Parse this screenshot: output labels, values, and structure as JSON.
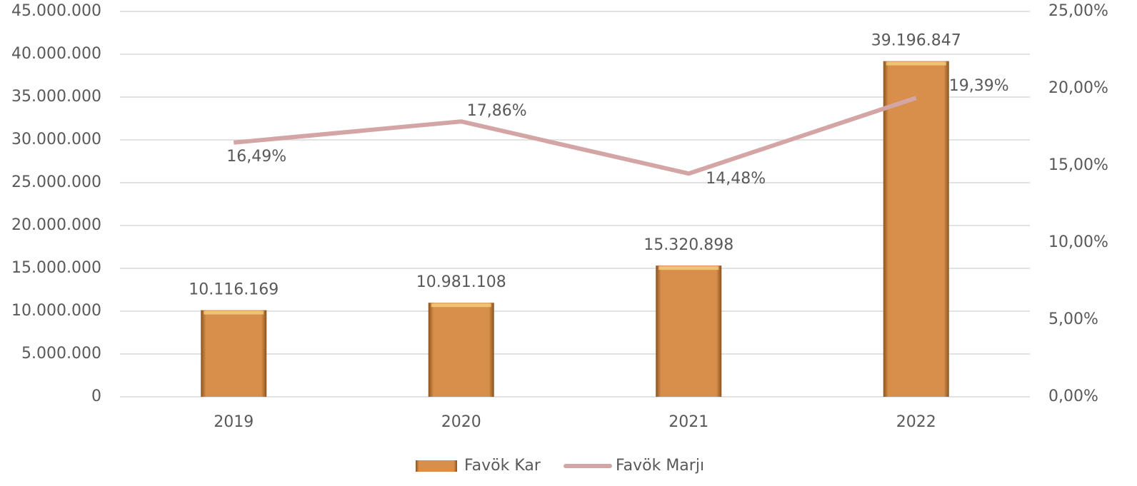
{
  "chart_data": {
    "type": "bar",
    "categories": [
      "2019",
      "2020",
      "2021",
      "2022"
    ],
    "series": [
      {
        "name": "Favök Kar",
        "color": "#d98f4c",
        "values": [
          10116169,
          10981108,
          15320898,
          39196847
        ],
        "value_labels": [
          "10.116.169",
          "10.981.108",
          "15.320.898",
          "39.196.847"
        ]
      },
      {
        "name": "Favök Marjı",
        "type": "line",
        "axis": "y2",
        "color": "#d4a5a5",
        "values": [
          16.49,
          17.86,
          14.48,
          19.39
        ],
        "value_labels": [
          "16,49%",
          "17,86%",
          "14,48%",
          "19,39%"
        ]
      }
    ],
    "ylim": [
      0,
      45000000
    ],
    "yticks": [
      0,
      {
        "value": 5000000,
        "label": "5.000.000"
      },
      {
        "value": 10000000,
        "label": "10.000.000"
      },
      {
        "value": 15000000,
        "label": "15.000.000"
      },
      {
        "value": 20000000,
        "label": "20.000.000"
      },
      {
        "value": 25000000,
        "label": "25.000.000"
      },
      {
        "value": 30000000,
        "label": "30.000.000"
      },
      {
        "value": 35000000,
        "label": "35.000.000"
      },
      {
        "value": 40000000,
        "label": "40.000.000"
      },
      {
        "value": 45000000,
        "label": "45.000.000"
      }
    ],
    "y2lim": [
      0,
      25
    ],
    "y2ticks": [
      {
        "value": 0,
        "label": "0,00%"
      },
      {
        "value": 5,
        "label": "5,00%"
      },
      {
        "value": 10,
        "label": "10,00%"
      },
      {
        "value": 15,
        "label": "15,00%"
      },
      {
        "value": 20,
        "label": "20,00%"
      },
      {
        "value": 25,
        "label": "25,00%"
      }
    ],
    "grid": true,
    "legend": "bottom"
  }
}
